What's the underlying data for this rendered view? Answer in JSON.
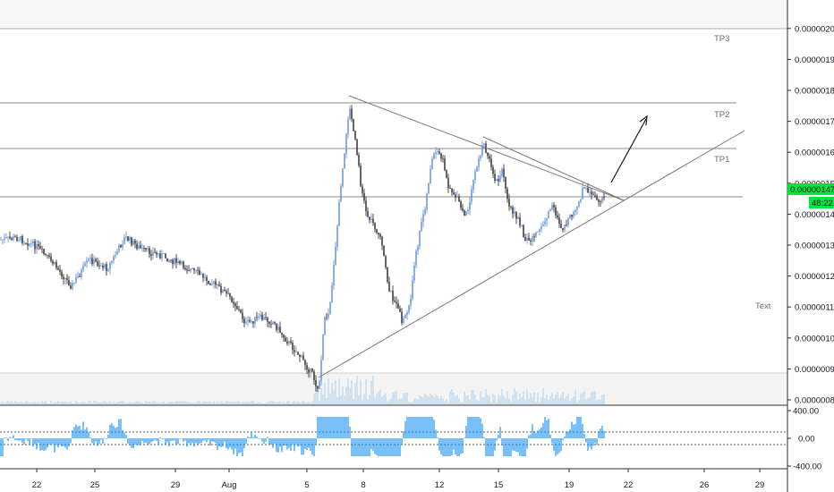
{
  "chart_data": {
    "type": "candlestick",
    "price_axis": {
      "ticks": [
        "0.00000200",
        "0.00000190",
        "0.00000180",
        "0.00000170",
        "0.00000160",
        "0.00000150",
        "0.00000140",
        "0.00000130",
        "0.00000120",
        "0.00000110",
        "0.00000100",
        "0.00000090",
        "0.00000080"
      ],
      "ylim": [
        7.7e-07,
        2.07e-06
      ]
    },
    "time_axis": {
      "ticks": [
        "22",
        "25",
        "29",
        "Aug",
        "5",
        "8",
        "12",
        "15",
        "19",
        "22",
        "26",
        "29"
      ]
    },
    "oscillator": {
      "ticks": [
        "400.00",
        "0.00",
        "-400.00"
      ],
      "upper_level": 100,
      "lower_level": -100
    },
    "current_price": "0.00000147",
    "countdown": "48:22",
    "levels": [
      {
        "label": "TP3",
        "price": 1.99e-06
      },
      {
        "label": "TP2",
        "price": 1.755e-06
      },
      {
        "label": "TP1",
        "price": 1.6e-06
      },
      {
        "label": "",
        "price": 1.445e-06
      }
    ],
    "annotation_text": "Text",
    "colors": {
      "up": "#5b8dd6",
      "down": "#222222",
      "osc": "#2196f3",
      "badge": "#00e640",
      "line": "#8c8c8c"
    }
  }
}
